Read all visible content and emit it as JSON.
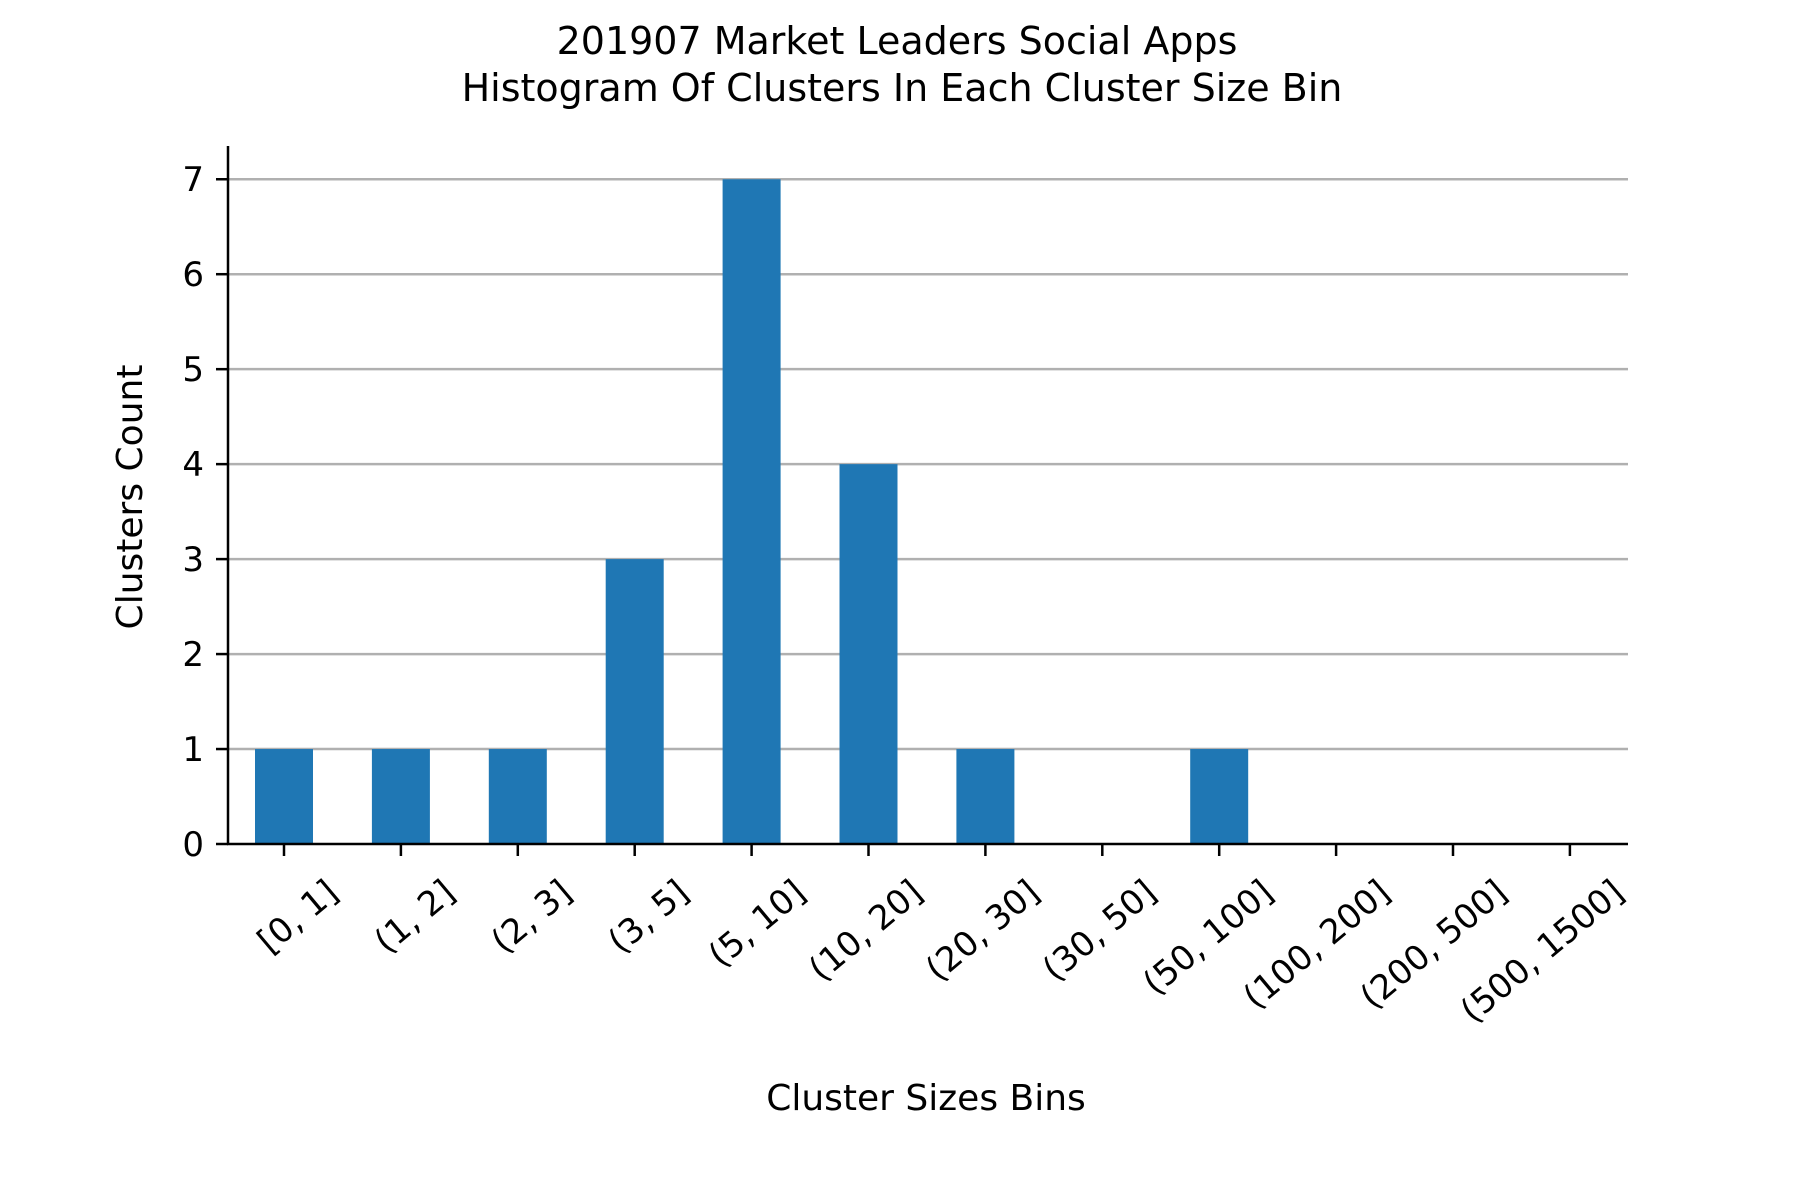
{
  "chart_data": {
    "type": "bar",
    "title": "201907 Market Leaders Social Apps",
    "subtitle": "Histogram Of Clusters In Each Cluster Size Bin",
    "xlabel": "Cluster Sizes Bins",
    "ylabel": "Clusters Count",
    "categories": [
      "[0, 1]",
      "(1, 2]",
      "(2, 3]",
      "(3, 5]",
      "(5, 10]",
      "(10, 20]",
      "(20, 30]",
      "(30, 50]",
      "(50, 100]",
      "(100, 200]",
      "(200, 500]",
      "(500, 1500]"
    ],
    "values": [
      1,
      1,
      1,
      3,
      7,
      4,
      1,
      0,
      1,
      0,
      0,
      0
    ],
    "ylim": [
      0,
      7.35
    ],
    "yticks": [
      0,
      1,
      2,
      3,
      4,
      5,
      6,
      7
    ],
    "grid": "horizontal",
    "legend": "none",
    "bar_color": "#1f77b4",
    "grid_color": "#b0b0b0",
    "axis_color": "#000000"
  }
}
